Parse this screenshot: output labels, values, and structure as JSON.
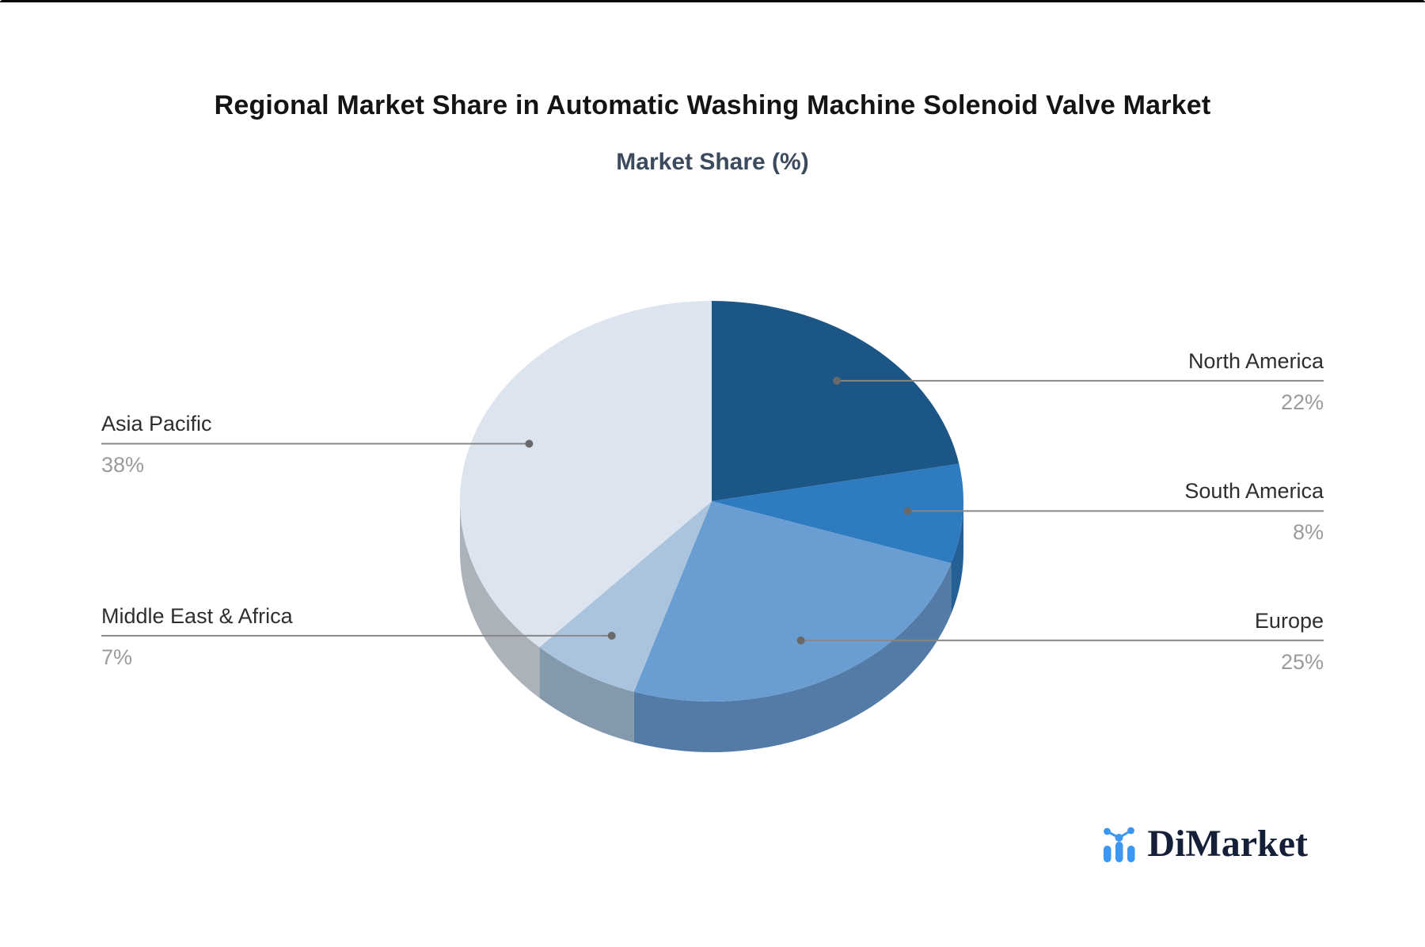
{
  "chart_data": {
    "type": "pie",
    "title": "Regional Market Share in Automatic Washing Machine Solenoid Valve Market",
    "subtitle": "Market Share (%)",
    "unit": "%",
    "effect": "3d",
    "start_angle_deg": -90,
    "direction": "clockwise",
    "legend_position": "none",
    "labeling": "leader-lines",
    "slices": [
      {
        "label": "North America",
        "value": 22,
        "color": "#1c5687",
        "label_side": "right"
      },
      {
        "label": "South America",
        "value": 8,
        "color": "#2e7bc0",
        "label_side": "right"
      },
      {
        "label": "Europe",
        "value": 25,
        "color": "#6a9ed3",
        "label_side": "right"
      },
      {
        "label": "Middle East & Africa",
        "value": 7,
        "color": "#abc4de",
        "label_side": "left"
      },
      {
        "label": "Asia Pacific",
        "value": 38,
        "color": "#dce4ef",
        "label_side": "left"
      }
    ],
    "style": {
      "leader_line_color": "#878787",
      "leader_dot_color": "#696969",
      "label_color": "#2e2e2e",
      "value_color": "#9b9b9b",
      "title_color": "#141414",
      "subtitle_color": "#3b4a5c"
    }
  },
  "branding": {
    "logo_text": "DiMarket",
    "logo_icon": "bar-line-chart-icon",
    "logo_icon_color": "#3b97f2",
    "logo_text_color": "#152038"
  }
}
